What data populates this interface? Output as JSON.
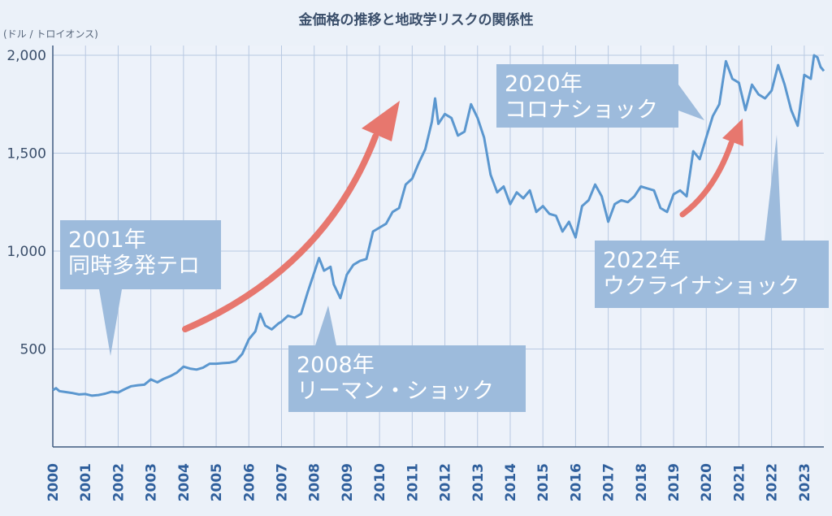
{
  "chart_data": {
    "type": "line",
    "title": "金価格の推移と地政学リスクの関係性",
    "ylabel": "(ドル / トロイオンス)",
    "xlabel": "",
    "ylim": [
      0,
      2050
    ],
    "xlim": [
      2000.0,
      2023.6
    ],
    "yticks": [
      500,
      1000,
      1500,
      2000
    ],
    "ytick_labels": [
      "500",
      "1,000",
      "1,500",
      "2,000"
    ],
    "xtick_labels": [
      "2000",
      "2001",
      "2002",
      "2003",
      "2004",
      "2005",
      "2006",
      "2007",
      "2008",
      "2009",
      "2010",
      "2011",
      "2012",
      "2013",
      "2014",
      "2015",
      "2016",
      "2017",
      "2018",
      "2019",
      "2020",
      "2021",
      "2022",
      "2023"
    ],
    "grid": "vertical-yearly, horizontal-at-ticks",
    "series": [
      {
        "color": "#5b97cf",
        "points": [
          [
            2000.0,
            290
          ],
          [
            2000.1,
            300
          ],
          [
            2000.2,
            285
          ],
          [
            2000.4,
            280
          ],
          [
            2000.6,
            275
          ],
          [
            2000.8,
            268
          ],
          [
            2001.0,
            270
          ],
          [
            2001.2,
            262
          ],
          [
            2001.4,
            265
          ],
          [
            2001.6,
            272
          ],
          [
            2001.8,
            282
          ],
          [
            2002.0,
            278
          ],
          [
            2002.2,
            295
          ],
          [
            2002.4,
            310
          ],
          [
            2002.6,
            315
          ],
          [
            2002.8,
            318
          ],
          [
            2003.0,
            345
          ],
          [
            2003.2,
            330
          ],
          [
            2003.4,
            348
          ],
          [
            2003.6,
            362
          ],
          [
            2003.8,
            380
          ],
          [
            2004.0,
            410
          ],
          [
            2004.2,
            400
          ],
          [
            2004.4,
            395
          ],
          [
            2004.6,
            405
          ],
          [
            2004.8,
            425
          ],
          [
            2005.0,
            425
          ],
          [
            2005.2,
            428
          ],
          [
            2005.4,
            430
          ],
          [
            2005.6,
            438
          ],
          [
            2005.8,
            475
          ],
          [
            2006.0,
            550
          ],
          [
            2006.2,
            590
          ],
          [
            2006.35,
            680
          ],
          [
            2006.5,
            620
          ],
          [
            2006.7,
            600
          ],
          [
            2006.9,
            630
          ],
          [
            2007.0,
            640
          ],
          [
            2007.2,
            670
          ],
          [
            2007.4,
            660
          ],
          [
            2007.6,
            680
          ],
          [
            2007.8,
            790
          ],
          [
            2008.0,
            890
          ],
          [
            2008.15,
            965
          ],
          [
            2008.3,
            900
          ],
          [
            2008.5,
            920
          ],
          [
            2008.6,
            830
          ],
          [
            2008.8,
            760
          ],
          [
            2009.0,
            880
          ],
          [
            2009.2,
            930
          ],
          [
            2009.4,
            950
          ],
          [
            2009.6,
            960
          ],
          [
            2009.8,
            1100
          ],
          [
            2010.0,
            1120
          ],
          [
            2010.2,
            1140
          ],
          [
            2010.4,
            1200
          ],
          [
            2010.6,
            1220
          ],
          [
            2010.8,
            1340
          ],
          [
            2011.0,
            1370
          ],
          [
            2011.2,
            1450
          ],
          [
            2011.4,
            1520
          ],
          [
            2011.6,
            1660
          ],
          [
            2011.7,
            1780
          ],
          [
            2011.8,
            1650
          ],
          [
            2012.0,
            1700
          ],
          [
            2012.2,
            1680
          ],
          [
            2012.4,
            1590
          ],
          [
            2012.6,
            1610
          ],
          [
            2012.8,
            1750
          ],
          [
            2013.0,
            1680
          ],
          [
            2013.2,
            1580
          ],
          [
            2013.4,
            1390
          ],
          [
            2013.6,
            1300
          ],
          [
            2013.8,
            1330
          ],
          [
            2014.0,
            1240
          ],
          [
            2014.2,
            1300
          ],
          [
            2014.4,
            1270
          ],
          [
            2014.6,
            1310
          ],
          [
            2014.8,
            1200
          ],
          [
            2015.0,
            1230
          ],
          [
            2015.2,
            1190
          ],
          [
            2015.4,
            1180
          ],
          [
            2015.6,
            1100
          ],
          [
            2015.8,
            1150
          ],
          [
            2016.0,
            1070
          ],
          [
            2016.2,
            1230
          ],
          [
            2016.4,
            1260
          ],
          [
            2016.6,
            1340
          ],
          [
            2016.8,
            1280
          ],
          [
            2017.0,
            1150
          ],
          [
            2017.2,
            1240
          ],
          [
            2017.4,
            1260
          ],
          [
            2017.6,
            1250
          ],
          [
            2017.8,
            1280
          ],
          [
            2018.0,
            1330
          ],
          [
            2018.2,
            1320
          ],
          [
            2018.4,
            1310
          ],
          [
            2018.6,
            1220
          ],
          [
            2018.8,
            1200
          ],
          [
            2019.0,
            1290
          ],
          [
            2019.2,
            1310
          ],
          [
            2019.4,
            1280
          ],
          [
            2019.6,
            1510
          ],
          [
            2019.8,
            1470
          ],
          [
            2020.0,
            1580
          ],
          [
            2020.2,
            1690
          ],
          [
            2020.4,
            1750
          ],
          [
            2020.6,
            1970
          ],
          [
            2020.8,
            1880
          ],
          [
            2021.0,
            1860
          ],
          [
            2021.2,
            1720
          ],
          [
            2021.4,
            1850
          ],
          [
            2021.6,
            1800
          ],
          [
            2021.8,
            1780
          ],
          [
            2022.0,
            1820
          ],
          [
            2022.2,
            1950
          ],
          [
            2022.4,
            1850
          ],
          [
            2022.6,
            1720
          ],
          [
            2022.8,
            1640
          ],
          [
            2023.0,
            1900
          ],
          [
            2023.2,
            1880
          ],
          [
            2023.3,
            2000
          ],
          [
            2023.4,
            1990
          ],
          [
            2023.5,
            1940
          ],
          [
            2023.6,
            1920
          ]
        ]
      }
    ],
    "annotations": [
      {
        "text": "2001年\n同時多発テロ",
        "x": 2001.8,
        "y": 450
      },
      {
        "text": "2008年\nリーマン・ショック",
        "x": 2008.3,
        "y": 730
      },
      {
        "text": "2020年\nコロナショック",
        "x": 2020.0,
        "y": 1650
      },
      {
        "text": "2022年\nウクライナショック",
        "x": 2022.2,
        "y": 1660
      }
    ]
  }
}
